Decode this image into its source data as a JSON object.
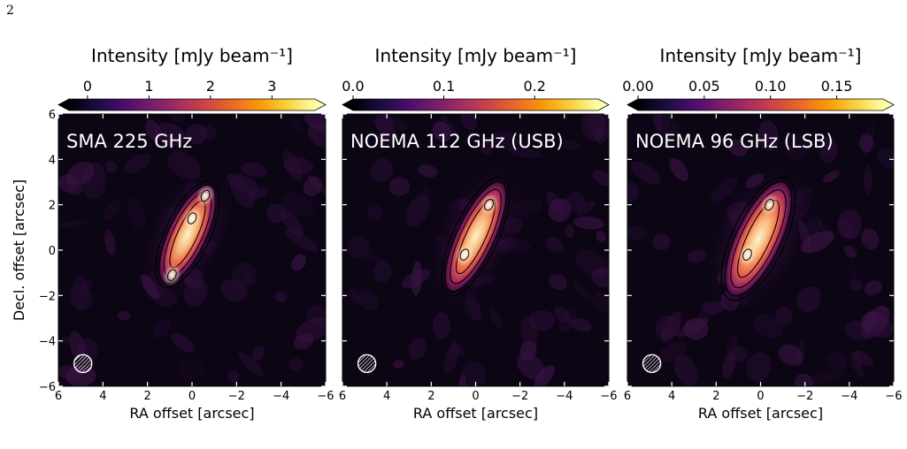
{
  "page_number": "2",
  "colors": {
    "background": "#0b0514",
    "colormap": [
      "#000004",
      "#1b0c41",
      "#4a0c6b",
      "#781c6d",
      "#a52c60",
      "#cf4446",
      "#ed6925",
      "#fb9b06",
      "#f7d13d",
      "#fcffa4"
    ],
    "contour": "#000000",
    "label": "#ffffff"
  },
  "chart_data": [
    {
      "type": "heatmap",
      "title": "SMA 225 GHz",
      "colorbar_label": "Intensity [mJy beam⁻¹]",
      "colorbar_range": [
        -0.3,
        3.7
      ],
      "colorbar_ticks": [
        "0",
        "1",
        "2",
        "3"
      ],
      "colorbar_tick_values": [
        0,
        1,
        2,
        3
      ],
      "xlabel": "RA offset [arcsec]",
      "ylabel": "Decl. offset [arcsec]",
      "xlim": [
        6,
        -6
      ],
      "ylim": [
        -6,
        6
      ],
      "x_ticks": [
        "6",
        "4",
        "2",
        "0",
        "−2",
        "−4",
        "−6"
      ],
      "x_tick_values": [
        6,
        4,
        2,
        0,
        -2,
        -4,
        -6
      ],
      "y_ticks": [
        "−6",
        "−4",
        "−2",
        "0",
        "2",
        "4",
        "6"
      ],
      "y_tick_values": [
        -6,
        -4,
        -2,
        0,
        2,
        4,
        6
      ],
      "source": {
        "center": [
          0.2,
          0.7
        ],
        "major_axis": 4.8,
        "minor_axis": 1.7,
        "position_angle_deg": 25
      },
      "peaks": [
        {
          "x": -0.6,
          "y": 2.4
        },
        {
          "x": 0.0,
          "y": 1.4
        },
        {
          "x": 0.9,
          "y": -1.1
        }
      ],
      "beam": {
        "x": 4.9,
        "y": -5.0,
        "diameter": 0.8
      }
    },
    {
      "type": "heatmap",
      "title": "NOEMA 112 GHz (USB)",
      "colorbar_label": "Intensity [mJy beam⁻¹]",
      "colorbar_range": [
        0.0,
        0.27
      ],
      "colorbar_ticks": [
        "0.0",
        "0.1",
        "0.2"
      ],
      "colorbar_tick_values": [
        0.0,
        0.1,
        0.2
      ],
      "xlabel": "RA offset [arcsec]",
      "ylabel": "",
      "xlim": [
        6,
        -6
      ],
      "ylim": [
        -6,
        6
      ],
      "x_ticks": [
        "6",
        "4",
        "2",
        "0",
        "−2",
        "−4",
        "−6"
      ],
      "x_tick_values": [
        6,
        4,
        2,
        0,
        -2,
        -4,
        -6
      ],
      "y_tick_values": [
        -6,
        -4,
        -2,
        0,
        2,
        4,
        6
      ],
      "source": {
        "center": [
          0.0,
          0.6
        ],
        "major_axis": 5.4,
        "minor_axis": 1.7,
        "position_angle_deg": 25
      },
      "peaks": [
        {
          "x": -0.6,
          "y": 2.0
        },
        {
          "x": 0.5,
          "y": -0.2
        }
      ],
      "beam": {
        "x": 4.9,
        "y": -5.0,
        "diameter": 0.8
      }
    },
    {
      "type": "heatmap",
      "title": "NOEMA 96 GHz (LSB)",
      "colorbar_label": "Intensity [mJy beam⁻¹]",
      "colorbar_range": [
        0.0,
        0.185
      ],
      "colorbar_ticks": [
        "0.00",
        "0.05",
        "0.10",
        "0.15"
      ],
      "colorbar_tick_values": [
        0.0,
        0.05,
        0.1,
        0.15
      ],
      "xlabel": "RA offset [arcsec]",
      "ylabel": "",
      "xlim": [
        6,
        -6
      ],
      "ylim": [
        -6,
        6
      ],
      "x_ticks": [
        "6",
        "4",
        "2",
        "0",
        "−2",
        "−4",
        "−6"
      ],
      "x_tick_values": [
        6,
        4,
        2,
        0,
        -2,
        -4,
        -6
      ],
      "y_tick_values": [
        -6,
        -4,
        -2,
        0,
        2,
        4,
        6
      ],
      "source": {
        "center": [
          0.1,
          0.5
        ],
        "major_axis": 5.6,
        "minor_axis": 2.0,
        "position_angle_deg": 25
      },
      "peaks": [
        {
          "x": -0.4,
          "y": 2.0
        },
        {
          "x": 0.6,
          "y": -0.2
        }
      ],
      "beam": {
        "x": 4.9,
        "y": -5.0,
        "diameter": 0.8
      }
    }
  ]
}
